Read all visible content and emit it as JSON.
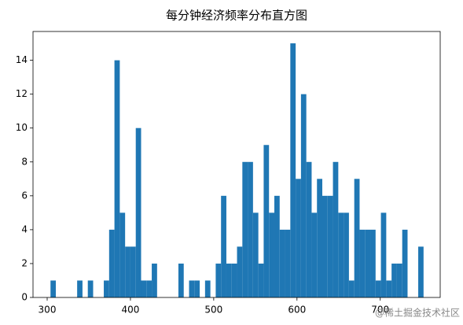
{
  "chart_data": {
    "type": "histogram",
    "title": "每分钟经济频率分布直方图",
    "bins": [
      304,
      310.4,
      316.8,
      323.2,
      329.6,
      336,
      342.4,
      348.8,
      355.2,
      361.6,
      368,
      374.4,
      380.8,
      387.2,
      393.6,
      400,
      406.4,
      412.8,
      419.2,
      425.6,
      432,
      438.4,
      444.8,
      451.2,
      457.6,
      464,
      470.4,
      476.8,
      483.2,
      489.6,
      496,
      502.4,
      508.8,
      515.2,
      521.6,
      528,
      534.4,
      540.8,
      547.2,
      553.6,
      560,
      566.4,
      572.8,
      579.2,
      585.6,
      592,
      598.4,
      604.8,
      611.2,
      617.6,
      624,
      630.4,
      636.8,
      643.2,
      649.6,
      656,
      662.4,
      668.8,
      675.2,
      681.6,
      688,
      694.4,
      700.8,
      707.2,
      713.6,
      720,
      726.4,
      732.8,
      739.2,
      745.6,
      752
    ],
    "values": [
      1,
      0,
      0,
      0,
      0,
      1,
      0,
      1,
      0,
      0,
      1,
      4,
      14,
      5,
      3,
      3,
      10,
      1,
      1,
      2,
      0,
      0,
      0,
      0,
      2,
      0,
      1,
      1,
      0,
      1,
      0,
      2,
      6,
      2,
      2,
      3,
      8,
      8,
      5,
      2,
      9,
      5,
      6,
      4,
      4,
      15,
      7,
      12,
      8,
      5,
      7,
      6,
      6,
      8,
      5,
      5,
      1,
      7,
      4,
      4,
      4,
      1,
      5,
      1,
      2,
      2,
      4,
      0,
      0,
      3
    ],
    "color": "#1f77b4",
    "xlim": [
      283,
      772
    ],
    "xticks": [
      300,
      400,
      500,
      600,
      700
    ],
    "ylim": [
      0,
      15.7
    ],
    "yticks": [
      0,
      2,
      4,
      6,
      8,
      10,
      12,
      14
    ],
    "watermark": "@稀土掘金技术社区"
  }
}
